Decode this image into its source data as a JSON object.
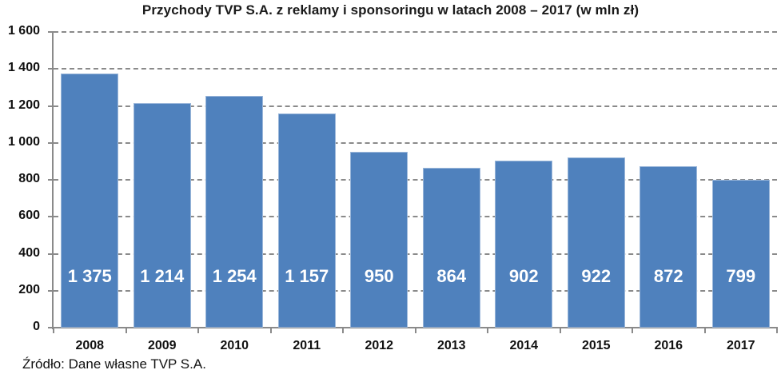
{
  "title": "Przychody TVP S.A. z reklamy i sponsoringu w latach 2008 – 2017 (w mln zł)",
  "source": "Źródło: Dane własne TVP S.A.",
  "colors": {
    "bar": "#4f81bd",
    "grid": "#8a8a8a",
    "label": "#ffffff"
  },
  "y_ticks": [
    "0",
    "200",
    "400",
    "600",
    "800",
    "1 000",
    "1 200",
    "1 400",
    "1 600"
  ],
  "bars": [
    {
      "year": "2008",
      "value": 1375,
      "label": "1 375"
    },
    {
      "year": "2009",
      "value": 1214,
      "label": "1 214"
    },
    {
      "year": "2010",
      "value": 1254,
      "label": "1 254"
    },
    {
      "year": "2011",
      "value": 1157,
      "label": "1 157"
    },
    {
      "year": "2012",
      "value": 950,
      "label": "950"
    },
    {
      "year": "2013",
      "value": 864,
      "label": "864"
    },
    {
      "year": "2014",
      "value": 902,
      "label": "902"
    },
    {
      "year": "2015",
      "value": 922,
      "label": "922"
    },
    {
      "year": "2016",
      "value": 872,
      "label": "872"
    },
    {
      "year": "2017",
      "value": 799,
      "label": "799"
    }
  ],
  "chart_data": {
    "type": "bar",
    "title": "Przychody TVP S.A. z reklamy i sponsoringu w latach 2008 – 2017 (w mln zł)",
    "categories": [
      "2008",
      "2009",
      "2010",
      "2011",
      "2012",
      "2013",
      "2014",
      "2015",
      "2016",
      "2017"
    ],
    "values": [
      1375,
      1214,
      1254,
      1157,
      950,
      864,
      902,
      922,
      872,
      799
    ],
    "xlabel": "",
    "ylabel": "",
    "ylim": [
      0,
      1600
    ],
    "yticks": [
      0,
      200,
      400,
      600,
      800,
      1000,
      1200,
      1400,
      1600
    ],
    "grid": true,
    "legend": null,
    "data_labels": true,
    "annotation": "Źródło: Dane własne TVP S.A."
  }
}
